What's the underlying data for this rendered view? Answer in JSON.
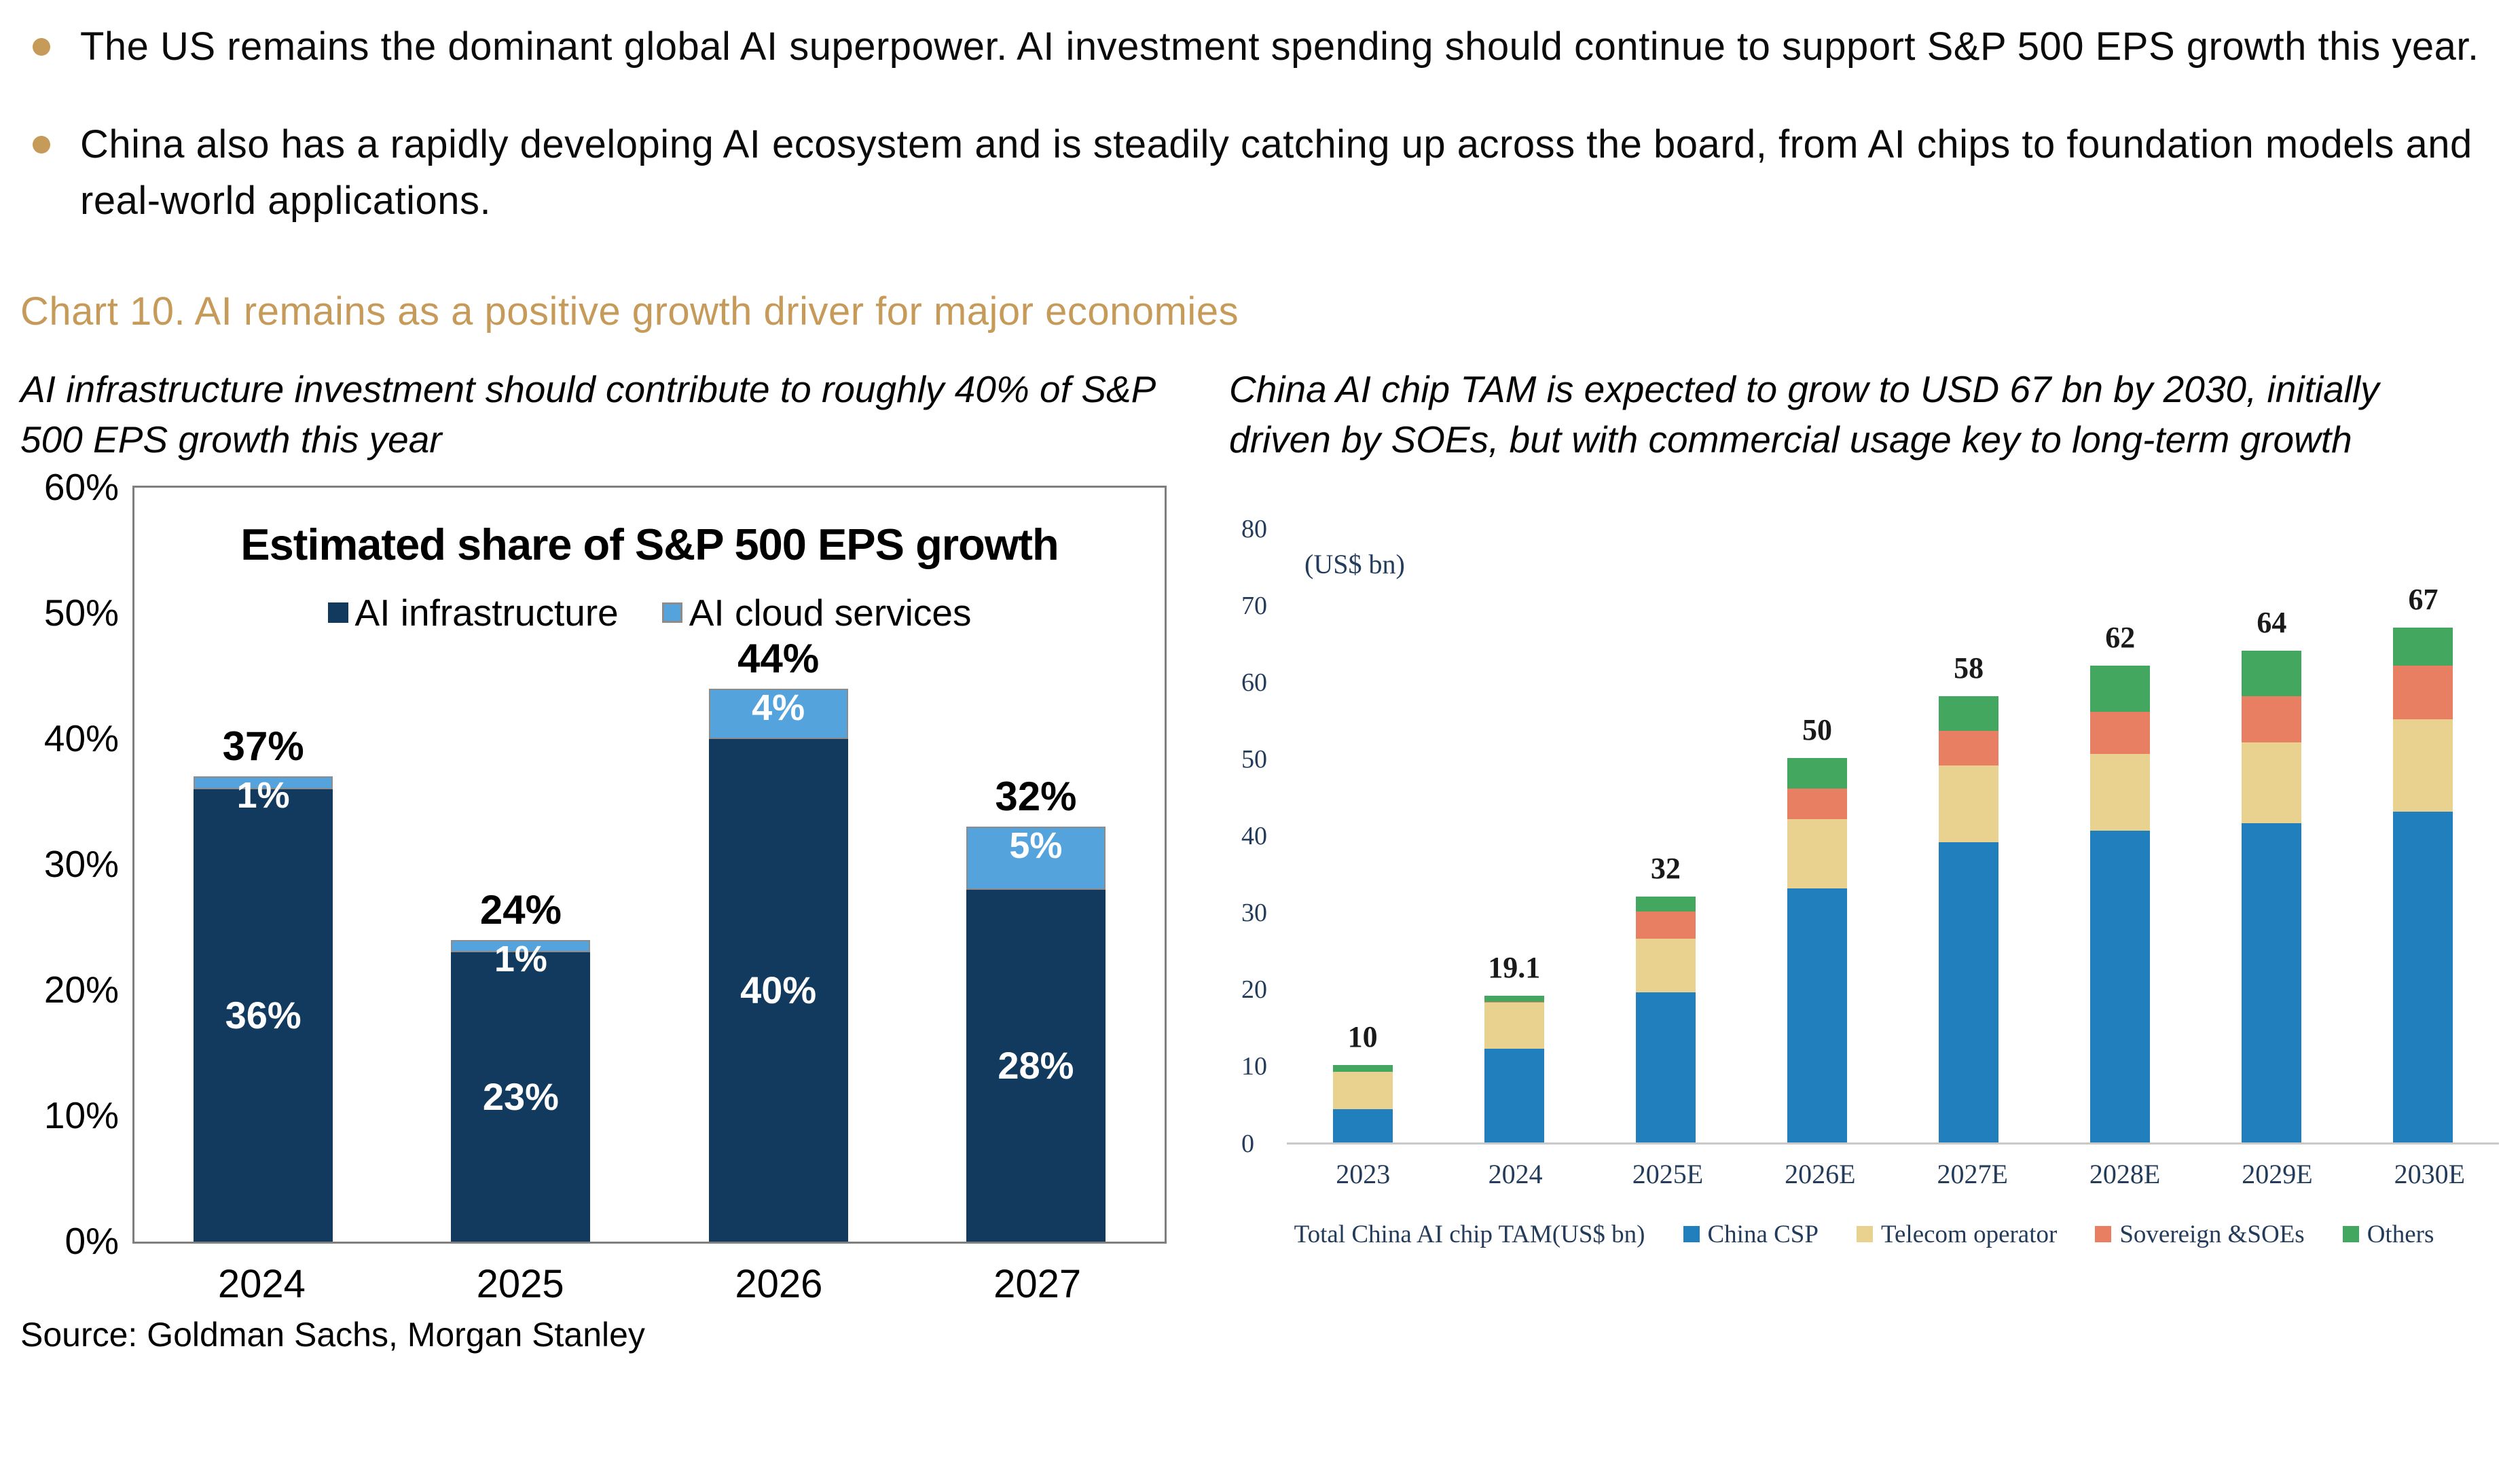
{
  "bullets": [
    "The US remains the dominant global AI superpower. AI investment spending should continue to support S&P 500 EPS growth this year.",
    "China also has a rapidly developing AI ecosystem and is steadily catching up across the board, from AI chips to foundation models and real-world applications."
  ],
  "section_title": "Chart 10. AI remains as a positive growth driver for major economies",
  "subtitle_left": "AI infrastructure investment should contribute to roughly 40% of S&P 500 EPS growth this year",
  "subtitle_right": "China AI chip TAM is expected to grow to USD 67 bn by 2030, initially driven by SOEs, but with commercial usage key to long-term growth",
  "source": "Source: Goldman Sachs, Morgan Stanley",
  "colors": {
    "accent_gold": "#c69a58",
    "navy": "#123a5e",
    "light_blue": "#55a3dd",
    "right_blue": "#217fbe",
    "tan": "#e9d18f",
    "salmon": "#e87e62",
    "green": "#44a75f",
    "axis_gray": "#7f7f7f"
  },
  "chart_data": [
    {
      "type": "bar",
      "stacked": true,
      "title": "Estimated share of S&P 500 EPS growth",
      "categories": [
        "2024",
        "2025",
        "2026",
        "2027"
      ],
      "series": [
        {
          "name": "AI infrastructure",
          "color": "#123a5e",
          "values": [
            36,
            23,
            40,
            28
          ],
          "labels": [
            "36%",
            "23%",
            "40%",
            "28%"
          ]
        },
        {
          "name": "AI cloud services",
          "color": "#55a3dd",
          "swatch_border": "#8c8c8c",
          "values": [
            1,
            1,
            4,
            5
          ],
          "labels": [
            "1%",
            "1%",
            "4%",
            "5%"
          ]
        }
      ],
      "totals_labels": [
        "37%",
        "24%",
        "44%",
        "32%"
      ],
      "y_ticks": [
        "60%",
        "50%",
        "40%",
        "30%",
        "20%",
        "10%",
        "0%"
      ],
      "ylim": [
        0,
        60
      ],
      "grid": false,
      "legend_position": "top-inside"
    },
    {
      "type": "bar",
      "stacked": true,
      "unit_label": "(US$ bn)",
      "categories": [
        "2023",
        "2024",
        "2025E",
        "2026E",
        "2027E",
        "2028E",
        "2029E",
        "2030E"
      ],
      "series": [
        {
          "name": "China CSP",
          "color": "#217fbe",
          "values": [
            4.3,
            12.2,
            19.5,
            33.0,
            39.0,
            40.5,
            41.5,
            43.0
          ]
        },
        {
          "name": "Telecom operator",
          "color": "#e9d18f",
          "values": [
            4.9,
            6.0,
            7.0,
            9.0,
            10.0,
            10.0,
            10.5,
            12.0
          ]
        },
        {
          "name": "Sovereign &SOEs",
          "color": "#e87e62",
          "values": [
            0.0,
            0.1,
            3.5,
            4.0,
            4.5,
            5.5,
            6.0,
            7.0
          ]
        },
        {
          "name": "Others",
          "color": "#44a75f",
          "values": [
            0.8,
            0.8,
            2.0,
            4.0,
            4.5,
            6.0,
            6.0,
            5.0
          ]
        }
      ],
      "totals_labels": [
        "10",
        "19.1",
        "32",
        "50",
        "58",
        "62",
        "64",
        "67"
      ],
      "legend_prefix": "Total China AI chip TAM(US$ bn)",
      "y_ticks": [
        "80",
        "70",
        "60",
        "50",
        "40",
        "30",
        "20",
        "10",
        "0"
      ],
      "ylim": [
        0,
        80
      ],
      "grid": false,
      "legend_position": "bottom"
    }
  ]
}
